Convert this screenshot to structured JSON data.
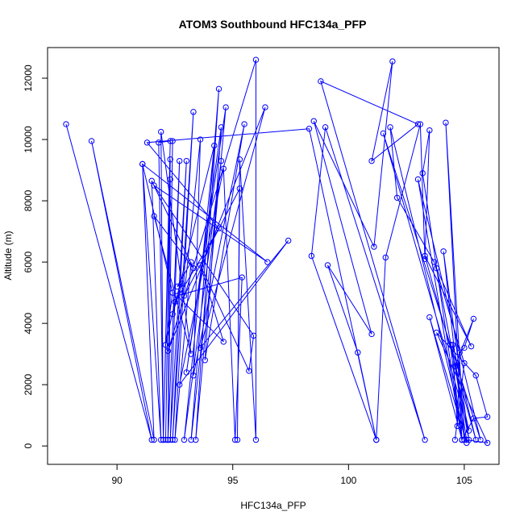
{
  "chart_data": {
    "type": "line",
    "title": "ATOM3 Southbound HFC134a_PFP",
    "xlabel": "HFC134a_PFP",
    "ylabel": "Altitude (m)",
    "xlim": [
      87.0,
      106.5
    ],
    "ylim": [
      -600,
      13000
    ],
    "xticks": [
      90,
      95,
      100,
      105
    ],
    "yticks": [
      0,
      2000,
      4000,
      6000,
      8000,
      10000,
      12000
    ],
    "series_color": "#0000ff",
    "marker": "open-circle",
    "grid": false,
    "legend": "none",
    "series": [
      {
        "points": [
          [
            87.8,
            10500
          ],
          [
            91.5,
            200
          ],
          [
            88.9,
            9950
          ],
          [
            91.6,
            200
          ],
          [
            91.1,
            9200
          ],
          [
            91.9,
            200
          ],
          [
            91.5,
            8650
          ],
          [
            93.3,
            5800
          ],
          [
            91.6,
            7500
          ],
          [
            93.2,
            3000
          ],
          [
            91.9,
            10250
          ],
          [
            92.0,
            200
          ],
          [
            91.8,
            9900
          ],
          [
            92.3,
            9950
          ],
          [
            92.0,
            200
          ],
          [
            92.3,
            9350
          ],
          [
            92.1,
            200
          ],
          [
            92.3,
            8700
          ],
          [
            92.2,
            200
          ],
          [
            92.4,
            9950
          ],
          [
            92.2,
            200
          ],
          [
            92.7,
            9300
          ],
          [
            92.3,
            200
          ],
          [
            93.0,
            9300
          ],
          [
            92.4,
            200
          ],
          [
            93.3,
            10900
          ],
          [
            92.5,
            200
          ],
          [
            93.2,
            6000
          ],
          [
            92.6,
            5200
          ],
          [
            92.8,
            5300
          ],
          [
            92.4,
            4300
          ],
          [
            94.2,
            9800
          ],
          [
            92.9,
            200
          ],
          [
            94.5,
            9300
          ],
          [
            93.2,
            200
          ],
          [
            94.4,
            11650
          ],
          [
            93.4,
            200
          ],
          [
            94.7,
            11050
          ],
          [
            93.0,
            2400
          ],
          [
            94.5,
            10400
          ],
          [
            93.8,
            2800
          ],
          [
            95.5,
            10500
          ],
          [
            93.3,
            2300
          ],
          [
            93.6,
            10000
          ],
          [
            92.9,
            4900
          ],
          [
            95.3,
            8400
          ],
          [
            95.2,
            200
          ],
          [
            95.3,
            9350
          ],
          [
            96.0,
            200
          ],
          [
            96.0,
            12600
          ],
          [
            92.2,
            3100
          ],
          [
            96.4,
            11050
          ],
          [
            93.6,
            3200
          ],
          [
            97.4,
            6700
          ],
          [
            92.7,
            2000
          ],
          [
            94.6,
            9050
          ],
          [
            95.1,
            200
          ],
          [
            95.4,
            5500
          ],
          [
            92.6,
            4900
          ],
          [
            94.6,
            3400
          ],
          [
            93.6,
            5900
          ],
          [
            95.7,
            2450
          ],
          [
            95.9,
            3600
          ],
          [
            91.6,
            8500
          ],
          [
            96.5,
            6000
          ],
          [
            91.1,
            9200
          ],
          [
            92.4,
            5000
          ],
          [
            92.1,
            3300
          ],
          [
            92.5,
            4700
          ],
          [
            94.4,
            7100
          ],
          [
            91.3,
            9900
          ],
          [
            98.3,
            10350
          ],
          [
            101.2,
            200
          ],
          [
            98.4,
            6200
          ],
          [
            99.0,
            10400
          ],
          [
            103.3,
            200
          ],
          [
            98.8,
            11900
          ],
          [
            103.0,
            10500
          ],
          [
            101.0,
            9300
          ],
          [
            101.9,
            12550
          ],
          [
            101.1,
            6500
          ],
          [
            98.5,
            10600
          ],
          [
            101.0,
            3650
          ],
          [
            99.1,
            5900
          ],
          [
            100.4,
            3050
          ],
          [
            101.2,
            200
          ],
          [
            101.6,
            6150
          ],
          [
            103.1,
            10500
          ],
          [
            103.3,
            6100
          ],
          [
            103.5,
            10300
          ],
          [
            103.2,
            8900
          ],
          [
            104.9,
            200
          ],
          [
            104.2,
            10550
          ],
          [
            105.0,
            200
          ],
          [
            104.1,
            6350
          ],
          [
            105.2,
            200
          ],
          [
            103.8,
            5800
          ],
          [
            105.3,
            3250
          ],
          [
            103.3,
            6200
          ],
          [
            105.5,
            200
          ],
          [
            104.5,
            3300
          ],
          [
            104.7,
            650
          ],
          [
            104.8,
            3050
          ],
          [
            105.0,
            3200
          ],
          [
            105.4,
            4150
          ],
          [
            104.6,
            2600
          ],
          [
            105.1,
            200
          ],
          [
            106.0,
            100
          ],
          [
            103.8,
            3700
          ],
          [
            105.5,
            2300
          ],
          [
            106.0,
            950
          ],
          [
            105.4,
            900
          ],
          [
            104.9,
            200
          ],
          [
            104.4,
            3300
          ],
          [
            105.2,
            500
          ],
          [
            101.5,
            10200
          ],
          [
            105.7,
            200
          ],
          [
            103.0,
            8700
          ],
          [
            104.9,
            200
          ],
          [
            103.5,
            4200
          ],
          [
            105.1,
            100
          ],
          [
            101.8,
            10400
          ],
          [
            102.1,
            8100
          ],
          [
            103.7,
            6000
          ],
          [
            105.0,
            2700
          ],
          [
            104.6,
            200
          ]
        ]
      }
    ]
  }
}
